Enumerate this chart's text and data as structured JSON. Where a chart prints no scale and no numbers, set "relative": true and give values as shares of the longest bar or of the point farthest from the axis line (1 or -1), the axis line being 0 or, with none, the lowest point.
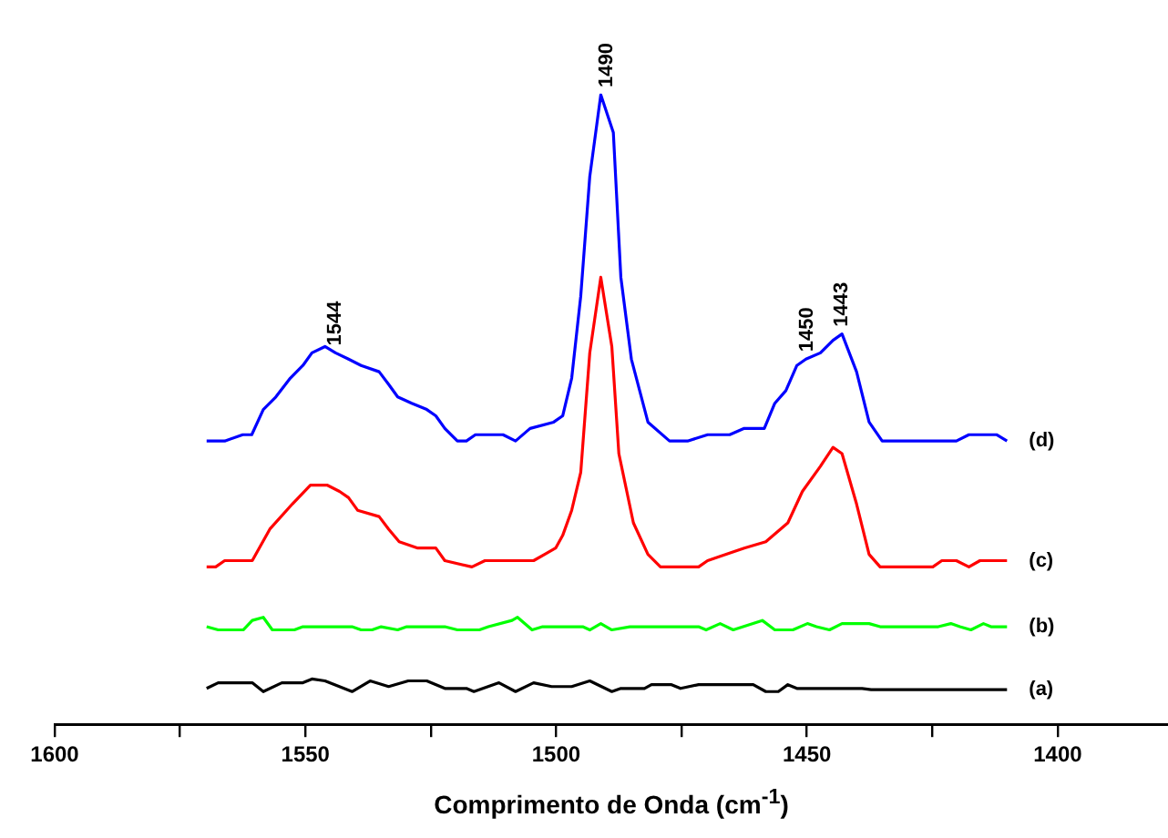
{
  "chart_data": {
    "type": "line",
    "xlabel": "Comprimento de Onda (cm$^{-1}$)",
    "relative": true,
    "marker": "none",
    "legend": false,
    "grid": false,
    "xlim": [
      1600,
      1378
    ],
    "xticks": [
      1600,
      {
        "value": 1575,
        "label": null
      },
      1550,
      {
        "value": 1525,
        "label": null
      },
      1500,
      {
        "value": 1475,
        "label": null
      },
      1450,
      {
        "value": 1425,
        "label": null
      },
      1400
    ],
    "annotations": [
      {
        "text": "1544",
        "x": 1544,
        "y": 0.59
      },
      {
        "text": "1490",
        "x": 1490,
        "y": 1
      },
      {
        "text": "1450",
        "x": 1450,
        "y": 0.58
      },
      {
        "text": "1443",
        "x": 1443,
        "y": 0.62
      }
    ],
    "series": [
      {
        "name": "(a)",
        "color": "#000000",
        "x": [
          1569.7,
          1567.4,
          1560.6,
          1558.4,
          1554.7,
          1550.5,
          1548.7,
          1546.1,
          1540.7,
          1537.1,
          1533.4,
          1529.5,
          1525.8,
          1522.2,
          1517.9,
          1516.4,
          1511.4,
          1508.1,
          1504.5,
          1500.9,
          1496.9,
          1493.3,
          1488.9,
          1487.1,
          1482.4,
          1481.0,
          1477.0,
          1475.2,
          1471.6,
          1460.7,
          1458.2,
          1455.7,
          1453.8,
          1452.0,
          1439.0,
          1437.2,
          1410.1
        ],
        "values": [
          0.057,
          0.066,
          0.066,
          0.052,
          0.066,
          0.066,
          0.072,
          0.069,
          0.052,
          0.069,
          0.06,
          0.069,
          0.069,
          0.057,
          0.057,
          0.052,
          0.066,
          0.052,
          0.066,
          0.06,
          0.06,
          0.069,
          0.052,
          0.057,
          0.057,
          0.063,
          0.063,
          0.057,
          0.063,
          0.063,
          0.052,
          0.052,
          0.063,
          0.057,
          0.057,
          0.055,
          0.055
        ]
      },
      {
        "name": "(b)",
        "color": "#00ff00",
        "x": [
          1569.7,
          1567.4,
          1562.4,
          1560.6,
          1558.4,
          1556.6,
          1552.2,
          1550.5,
          1540.7,
          1538.9,
          1536.7,
          1534.9,
          1531.6,
          1529.8,
          1522.2,
          1519.7,
          1515.3,
          1513.5,
          1508.8,
          1507.7,
          1504.8,
          1502.7,
          1494.7,
          1493.3,
          1491.1,
          1488.9,
          1485.3,
          1471.6,
          1470.1,
          1467.3,
          1464.7,
          1458.9,
          1456.4,
          1452.8,
          1449.9,
          1448.1,
          1445.5,
          1443.0,
          1437.6,
          1435.4,
          1423.8,
          1421.3,
          1419.5,
          1417.3,
          1414.8,
          1413.3,
          1410.1
        ],
        "values": [
          0.155,
          0.15,
          0.15,
          0.165,
          0.17,
          0.15,
          0.15,
          0.155,
          0.155,
          0.15,
          0.15,
          0.155,
          0.15,
          0.155,
          0.155,
          0.15,
          0.15,
          0.155,
          0.165,
          0.17,
          0.15,
          0.155,
          0.155,
          0.15,
          0.16,
          0.15,
          0.155,
          0.155,
          0.15,
          0.16,
          0.15,
          0.165,
          0.15,
          0.15,
          0.16,
          0.155,
          0.15,
          0.16,
          0.16,
          0.155,
          0.155,
          0.16,
          0.155,
          0.15,
          0.16,
          0.155,
          0.155
        ]
      },
      {
        "name": "(c)",
        "color": "#ff0000",
        "x": [
          1569.7,
          1567.9,
          1566.1,
          1562.5,
          1560.6,
          1557.1,
          1552.6,
          1549.0,
          1545.7,
          1543.2,
          1541.4,
          1539.6,
          1535.3,
          1533.4,
          1531.3,
          1527.6,
          1525.1,
          1524.0,
          1522.2,
          1516.8,
          1514.2,
          1512.4,
          1510.6,
          1504.5,
          1502.3,
          1500.1,
          1498.7,
          1496.9,
          1495.1,
          1493.3,
          1491.1,
          1488.9,
          1487.5,
          1484.6,
          1481.7,
          1479.2,
          1475.6,
          1473.4,
          1471.6,
          1469.8,
          1466.1,
          1462.5,
          1458.2,
          1453.8,
          1450.9,
          1447.3,
          1444.8,
          1443.0,
          1440.1,
          1437.6,
          1435.4,
          1433.6,
          1424.9,
          1423.1,
          1420.2,
          1417.7,
          1415.5,
          1410.1
        ],
        "values": [
          0.25,
          0.25,
          0.26,
          0.26,
          0.26,
          0.31,
          0.35,
          0.38,
          0.38,
          0.37,
          0.36,
          0.34,
          0.33,
          0.31,
          0.29,
          0.28,
          0.28,
          0.28,
          0.26,
          0.25,
          0.26,
          0.26,
          0.26,
          0.26,
          0.27,
          0.28,
          0.3,
          0.34,
          0.4,
          0.59,
          0.71,
          0.6,
          0.43,
          0.32,
          0.27,
          0.25,
          0.25,
          0.25,
          0.25,
          0.26,
          0.27,
          0.28,
          0.29,
          0.32,
          0.37,
          0.41,
          0.44,
          0.43,
          0.35,
          0.27,
          0.25,
          0.25,
          0.25,
          0.26,
          0.26,
          0.25,
          0.26,
          0.26
        ]
      },
      {
        "name": "(d)",
        "color": "#0000ff",
        "x": [
          1569.7,
          1566.1,
          1562.5,
          1560.7,
          1558.4,
          1555.9,
          1553.0,
          1550.5,
          1548.7,
          1546.1,
          1544.0,
          1541.4,
          1538.9,
          1535.3,
          1533.4,
          1531.6,
          1528.8,
          1525.8,
          1524.0,
          1522.2,
          1519.7,
          1517.9,
          1516.1,
          1510.6,
          1508.1,
          1505.2,
          1500.5,
          1498.7,
          1496.9,
          1495.1,
          1493.3,
          1491.1,
          1488.6,
          1487.1,
          1485.0,
          1481.7,
          1477.4,
          1473.8,
          1469.8,
          1465.4,
          1462.5,
          1458.5,
          1456.4,
          1454.2,
          1452.0,
          1450.2,
          1447.3,
          1444.8,
          1443.0,
          1440.1,
          1437.6,
          1435.0,
          1433.0,
          1420.2,
          1417.7,
          1412.2,
          1410.1
        ],
        "values": [
          0.45,
          0.45,
          0.46,
          0.46,
          0.5,
          0.52,
          0.55,
          0.57,
          0.59,
          0.6,
          0.59,
          0.58,
          0.57,
          0.56,
          0.54,
          0.52,
          0.51,
          0.5,
          0.49,
          0.47,
          0.45,
          0.45,
          0.46,
          0.46,
          0.45,
          0.47,
          0.48,
          0.49,
          0.55,
          0.68,
          0.87,
          1,
          0.94,
          0.71,
          0.58,
          0.48,
          0.45,
          0.45,
          0.46,
          0.46,
          0.47,
          0.47,
          0.51,
          0.53,
          0.57,
          0.58,
          0.59,
          0.61,
          0.62,
          0.56,
          0.48,
          0.45,
          0.45,
          0.45,
          0.46,
          0.46,
          0.45
        ]
      }
    ]
  }
}
